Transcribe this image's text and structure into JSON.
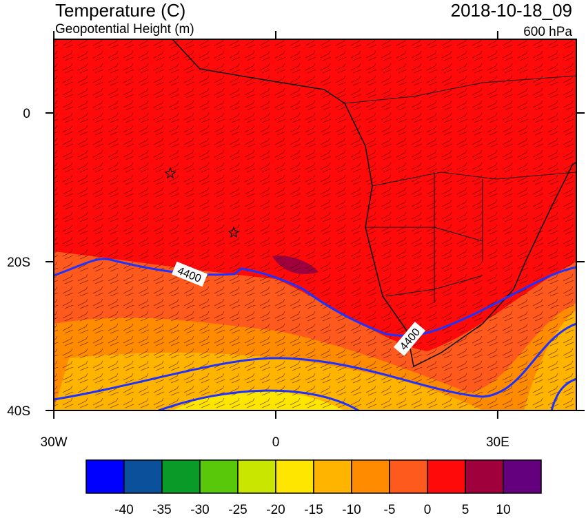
{
  "header": {
    "title": "Temperature (C)",
    "subtitle": "Geopotential Height (m)",
    "datetime": "2018-10-18_09",
    "level": "600 hPa"
  },
  "map": {
    "lat_ticks": [
      0,
      {
        "value": -20,
        "label": "20S"
      },
      {
        "value": -40,
        "label": "40S"
      }
    ],
    "lon_ticks": [
      {
        "value": -30,
        "label": "30W"
      },
      0,
      {
        "value": 30,
        "label": "30E"
      }
    ],
    "contour_labels": [
      "4400",
      "4400"
    ]
  },
  "colorbar": {
    "colors": [
      "#0000ff",
      "#0a509a",
      "#0a9a28",
      "#5ac80a",
      "#c8e600",
      "#ffe600",
      "#ffb400",
      "#ff8c00",
      "#ff5a1e",
      "#ff0a0a",
      "#a0003c",
      "#64007d"
    ],
    "bounds": [
      -40,
      -35,
      -30,
      -25,
      -20,
      -15,
      -10,
      -5,
      0,
      5,
      10
    ]
  }
}
